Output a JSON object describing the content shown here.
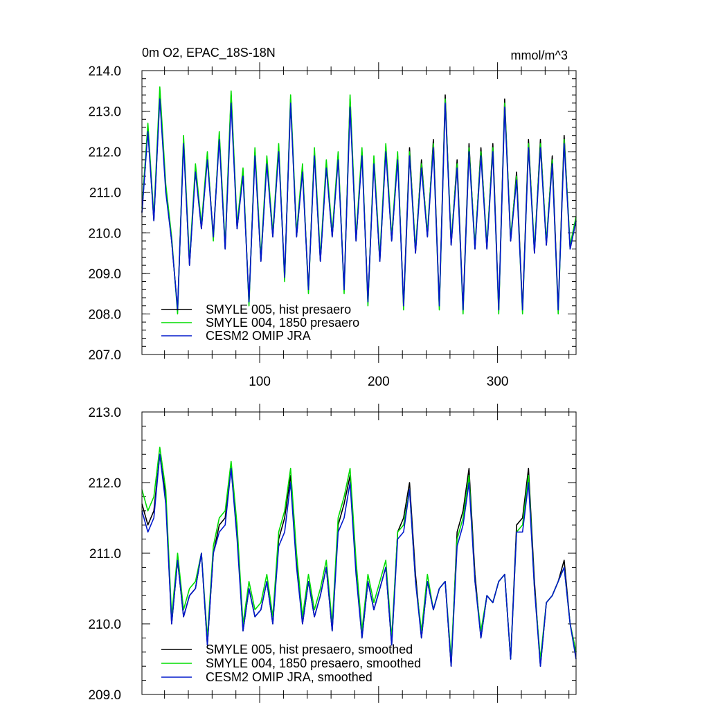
{
  "chart_data": [
    {
      "type": "line",
      "title": "0m O2, EPAC_18S-18N",
      "units": "mmol/m^3",
      "xlabel": "",
      "ylabel": "",
      "xlim": [
        1,
        366
      ],
      "ylim": [
        207.0,
        214.0
      ],
      "yticks": [
        207.0,
        208.0,
        209.0,
        210.0,
        211.0,
        212.0,
        213.0,
        214.0
      ],
      "ytick_labels": [
        "207.0",
        "208.0",
        "209.0",
        "210.0",
        "211.0",
        "212.0",
        "213.0",
        "214.0"
      ],
      "xticks": [
        100,
        200,
        300
      ],
      "xtick_labels": [
        "100",
        "200",
        "300"
      ],
      "legend_position": "bottom-left",
      "x": [
        1,
        6,
        11,
        16,
        21,
        26,
        31,
        36,
        41,
        46,
        51,
        56,
        61,
        66,
        71,
        76,
        81,
        86,
        91,
        96,
        101,
        106,
        111,
        116,
        121,
        126,
        131,
        136,
        141,
        146,
        151,
        156,
        161,
        166,
        171,
        176,
        181,
        186,
        191,
        196,
        201,
        206,
        211,
        216,
        221,
        226,
        231,
        236,
        241,
        246,
        251,
        256,
        261,
        266,
        271,
        276,
        281,
        286,
        291,
        296,
        301,
        306,
        311,
        316,
        321,
        326,
        331,
        336,
        341,
        346,
        351,
        356,
        361,
        366
      ],
      "series": [
        {
          "name": "SMYLE 005, hist presaero",
          "color": "#000000",
          "values": [
            210.5,
            212.6,
            210.3,
            213.4,
            211.1,
            209.8,
            208.1,
            212.3,
            209.2,
            211.6,
            210.1,
            211.9,
            209.9,
            212.4,
            209.6,
            213.4,
            210.1,
            211.5,
            208.3,
            212.0,
            209.3,
            211.8,
            209.9,
            212.1,
            208.9,
            213.3,
            209.9,
            211.6,
            208.6,
            212.0,
            209.3,
            211.7,
            209.9,
            211.9,
            208.6,
            213.3,
            209.8,
            212.0,
            208.3,
            211.8,
            209.3,
            212.1,
            209.8,
            211.9,
            208.2,
            212.1,
            209.5,
            211.8,
            209.9,
            212.3,
            208.2,
            213.4,
            209.7,
            211.8,
            208.1,
            212.2,
            209.6,
            212.1,
            209.6,
            212.2,
            208.1,
            213.3,
            209.8,
            211.5,
            208.1,
            212.3,
            209.5,
            212.3,
            209.7,
            211.9,
            208.1,
            212.4,
            209.6,
            210.3
          ]
        },
        {
          "name": "SMYLE 004, 1850 presaero",
          "color": "#00dd00",
          "values": [
            210.6,
            212.7,
            210.4,
            213.6,
            211.2,
            209.9,
            208.0,
            212.4,
            209.3,
            211.7,
            210.2,
            212.0,
            209.8,
            212.5,
            209.7,
            213.5,
            210.2,
            211.6,
            208.2,
            212.1,
            209.4,
            211.9,
            210.0,
            212.2,
            208.8,
            213.4,
            210.0,
            211.7,
            208.5,
            212.1,
            209.4,
            211.8,
            210.0,
            212.0,
            208.5,
            213.4,
            209.9,
            212.1,
            208.2,
            211.9,
            209.4,
            212.2,
            209.9,
            212.0,
            208.1,
            212.0,
            209.6,
            211.7,
            210.0,
            212.2,
            208.1,
            213.3,
            209.8,
            211.7,
            208.0,
            212.1,
            209.7,
            212.0,
            209.7,
            212.1,
            208.0,
            213.2,
            209.9,
            211.4,
            208.0,
            212.2,
            209.6,
            212.2,
            209.8,
            211.8,
            208.0,
            212.3,
            209.7,
            210.4
          ]
        },
        {
          "name": "CESM2 OMIP JRA",
          "color": "#0018cc",
          "values": [
            210.5,
            212.5,
            210.3,
            213.3,
            211.0,
            209.8,
            208.1,
            212.2,
            209.2,
            211.5,
            210.1,
            211.8,
            209.9,
            212.3,
            209.6,
            213.2,
            210.1,
            211.4,
            208.3,
            211.9,
            209.3,
            211.7,
            209.9,
            212.0,
            208.9,
            213.2,
            209.9,
            211.5,
            208.6,
            211.9,
            209.3,
            211.6,
            209.9,
            211.8,
            208.6,
            213.1,
            209.8,
            211.9,
            208.3,
            211.7,
            209.3,
            212.0,
            209.8,
            211.8,
            208.2,
            211.9,
            209.5,
            211.6,
            209.9,
            212.1,
            208.2,
            213.2,
            209.7,
            211.6,
            208.1,
            212.0,
            209.6,
            211.9,
            209.6,
            212.0,
            208.1,
            213.1,
            209.8,
            211.3,
            208.1,
            212.1,
            209.5,
            212.1,
            209.7,
            211.7,
            208.1,
            212.2,
            209.6,
            210.3
          ]
        }
      ]
    },
    {
      "type": "line",
      "title": "",
      "xlabel": "",
      "ylabel": "",
      "xlim": [
        1,
        366
      ],
      "ylim": [
        209.0,
        213.0
      ],
      "yticks": [
        209.0,
        210.0,
        211.0,
        212.0,
        213.0
      ],
      "ytick_labels": [
        "209.0",
        "210.0",
        "211.0",
        "212.0",
        "213.0"
      ],
      "legend_position": "bottom-left",
      "x": [
        1,
        6,
        11,
        16,
        21,
        26,
        31,
        36,
        41,
        46,
        51,
        56,
        61,
        66,
        71,
        76,
        81,
        86,
        91,
        96,
        101,
        106,
        111,
        116,
        121,
        126,
        131,
        136,
        141,
        146,
        151,
        156,
        161,
        166,
        171,
        176,
        181,
        186,
        191,
        196,
        201,
        206,
        211,
        216,
        221,
        226,
        231,
        236,
        241,
        246,
        251,
        256,
        261,
        266,
        271,
        276,
        281,
        286,
        291,
        296,
        301,
        306,
        311,
        316,
        321,
        326,
        331,
        336,
        341,
        346,
        351,
        356,
        361,
        366
      ],
      "series": [
        {
          "name": "SMYLE 005, hist presaero, smoothed",
          "color": "#000000",
          "values": [
            211.7,
            211.4,
            211.6,
            212.4,
            211.8,
            210.0,
            210.9,
            210.1,
            210.4,
            210.5,
            211.0,
            209.7,
            211.0,
            211.4,
            211.5,
            212.2,
            211.3,
            209.9,
            210.5,
            210.1,
            210.2,
            210.6,
            210.0,
            211.2,
            211.5,
            212.1,
            210.9,
            210.0,
            210.6,
            210.1,
            210.4,
            210.8,
            209.9,
            211.4,
            211.7,
            212.1,
            210.8,
            209.8,
            210.6,
            210.2,
            210.5,
            210.8,
            209.7,
            211.3,
            211.5,
            212.0,
            210.7,
            209.8,
            210.6,
            210.2,
            210.5,
            210.6,
            209.4,
            211.3,
            211.6,
            212.2,
            210.7,
            209.8,
            210.4,
            210.3,
            210.6,
            210.7,
            209.5,
            211.4,
            211.5,
            212.2,
            210.6,
            209.4,
            210.3,
            210.4,
            210.6,
            210.9,
            210.0,
            209.6
          ]
        },
        {
          "name": "SMYLE 004, 1850 presaero, smoothed",
          "color": "#00dd00",
          "values": [
            211.9,
            211.6,
            211.8,
            212.5,
            211.9,
            210.1,
            211.0,
            210.2,
            210.5,
            210.6,
            211.0,
            209.8,
            211.1,
            211.5,
            211.6,
            212.3,
            211.4,
            210.0,
            210.6,
            210.2,
            210.3,
            210.7,
            210.1,
            211.3,
            211.6,
            212.2,
            211.0,
            210.1,
            210.7,
            210.2,
            210.5,
            210.9,
            210.0,
            211.5,
            211.8,
            212.2,
            210.9,
            209.9,
            210.7,
            210.3,
            210.6,
            210.9,
            209.8,
            211.3,
            211.4,
            211.9,
            210.6,
            209.9,
            210.7,
            210.2,
            210.5,
            210.6,
            209.5,
            211.2,
            211.5,
            212.1,
            210.6,
            209.9,
            210.4,
            210.3,
            210.6,
            210.7,
            209.5,
            211.3,
            211.4,
            212.1,
            210.5,
            209.5,
            210.3,
            210.4,
            210.6,
            210.8,
            210.0,
            209.6
          ]
        },
        {
          "name": "CESM2 OMIP JRA, smoothed",
          "color": "#0018cc",
          "values": [
            211.6,
            211.3,
            211.5,
            212.4,
            211.7,
            210.0,
            210.9,
            210.1,
            210.4,
            210.5,
            211.0,
            209.7,
            211.0,
            211.3,
            211.4,
            212.2,
            211.2,
            209.9,
            210.5,
            210.1,
            210.2,
            210.6,
            210.0,
            211.1,
            211.3,
            212.0,
            210.8,
            210.0,
            210.6,
            210.1,
            210.4,
            210.8,
            209.9,
            211.3,
            211.5,
            212.0,
            210.7,
            209.8,
            210.6,
            210.2,
            210.5,
            210.8,
            209.7,
            211.2,
            211.3,
            211.9,
            210.6,
            209.8,
            210.6,
            210.2,
            210.5,
            210.6,
            209.4,
            211.1,
            211.4,
            212.0,
            210.6,
            209.8,
            210.4,
            210.3,
            210.6,
            210.7,
            209.5,
            211.3,
            211.3,
            212.0,
            210.5,
            209.4,
            210.3,
            210.4,
            210.6,
            210.8,
            210.0,
            209.5
          ]
        }
      ]
    }
  ]
}
